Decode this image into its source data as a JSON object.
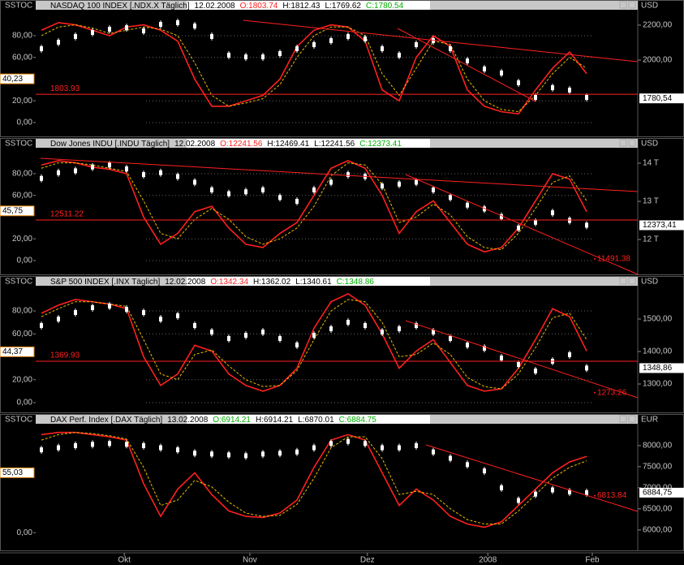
{
  "x_axis": {
    "x": [
      1,
      4,
      7,
      10,
      13,
      16,
      19,
      22,
      25,
      28,
      31,
      34,
      37,
      40,
      43,
      46,
      49,
      52,
      55,
      58,
      61,
      64,
      67,
      70,
      73,
      76,
      79,
      82,
      85,
      88,
      91,
      94,
      97
    ],
    "xlim": [
      0,
      106
    ],
    "xticks": [
      {
        "value": 15.6,
        "label": "Okt"
      },
      {
        "value": 37.7,
        "label": "Nov"
      },
      {
        "value": 58.4,
        "label": "Dez"
      },
      {
        "value": 79.6,
        "label": "2008"
      },
      {
        "value": 98,
        "label": "Feb"
      }
    ]
  },
  "chart_data": [
    {
      "type": "stochastic",
      "indicator": "SSTOC",
      "y2_unit": "USD",
      "title": "NASDAQ 100 INDEX [.NDX.X  Täglich]",
      "date": "12.02.2008",
      "quote": [
        {
          "text": "O:1803.74",
          "color": "#ff2020"
        },
        {
          "text": "H:1812.43",
          "color": "#000000"
        },
        {
          "text": "L:1769.62",
          "color": "#000000"
        },
        {
          "text": "C:1780.54",
          "color": "#00b000"
        }
      ],
      "ylim": [
        -10.5,
        103.9
      ],
      "yticks": [
        {
          "value": 0,
          "label": "0,00"
        },
        {
          "value": 20,
          "label": "20,00"
        },
        {
          "value": 60,
          "label": "60,00"
        },
        {
          "value": 80,
          "label": "80,00"
        }
      ],
      "y2lim": [
        1577,
        2288
      ],
      "y2ticks": [
        {
          "value": 2000,
          "label": "2000,00"
        },
        {
          "value": 2200,
          "label": "2200,00"
        }
      ],
      "grid": true,
      "series": [
        {
          "color": "#ff2020",
          "values": [
            85,
            92,
            90,
            85,
            80,
            88,
            90,
            85,
            75,
            40,
            15,
            15,
            20,
            25,
            40,
            70,
            85,
            90,
            88,
            75,
            30,
            20,
            60,
            80,
            70,
            30,
            15,
            10,
            8,
            30,
            50,
            65,
            45
          ]
        },
        {
          "color": "#e8c000",
          "dashed": true,
          "values": [
            80,
            88,
            90,
            87,
            82,
            85,
            88,
            86,
            80,
            55,
            25,
            15,
            18,
            22,
            35,
            60,
            80,
            88,
            88,
            80,
            45,
            25,
            50,
            75,
            72,
            40,
            20,
            12,
            10,
            25,
            45,
            60,
            50
          ]
        },
        {
          "color": "#ffffff",
          "candles": true,
          "axis": "y2",
          "values": [
            2065,
            2102,
            2135,
            2158,
            2176,
            2185,
            2167,
            2204,
            2214,
            2195,
            2135,
            2028,
            2018,
            2018,
            2037,
            2065,
            2088,
            2111,
            2135,
            2121,
            2065,
            2028,
            2088,
            2111,
            2065,
            1995,
            1949,
            1926,
            1870,
            1786,
            1842,
            1828,
            1786
          ]
        }
      ],
      "level": {
        "value": 1803.93,
        "label": "1803.93"
      },
      "left_tag": {
        "value": 40.23,
        "label": "40,23"
      },
      "right_tag": {
        "value": 1780.54,
        "label": "1780,54"
      }
    },
    {
      "type": "stochastic",
      "indicator": "SSTOC",
      "y2_unit": "USD",
      "title": "Dow Jones INDU [.INDU  Täglich]",
      "date": "12.02.2008",
      "quote": [
        {
          "text": "O:12241.56",
          "color": "#ff2020"
        },
        {
          "text": "H:12469.41",
          "color": "#000000"
        },
        {
          "text": "L:12241.56",
          "color": "#000000"
        },
        {
          "text": "C:12373.41",
          "color": "#00b000"
        }
      ],
      "ylim": [
        -10.5,
        103.9
      ],
      "yticks": [
        {
          "value": 0,
          "label": "0,00"
        },
        {
          "value": 20,
          "label": "20,00"
        },
        {
          "value": 60,
          "label": "60,00"
        },
        {
          "value": 80,
          "label": "80,00"
        }
      ],
      "y2lim": [
        11149,
        14404
      ],
      "y2ticks": [
        {
          "value": 12000,
          "label": "12 T"
        },
        {
          "value": 13000,
          "label": "13 T"
        },
        {
          "value": 14000,
          "label": "14 T"
        }
      ],
      "grid": true,
      "series": [
        {
          "color": "#ff2020",
          "values": [
            88,
            92,
            90,
            86,
            84,
            80,
            40,
            15,
            25,
            45,
            50,
            30,
            15,
            12,
            25,
            35,
            60,
            85,
            92,
            85,
            60,
            25,
            45,
            55,
            35,
            15,
            8,
            12,
            30,
            55,
            80,
            75,
            45
          ]
        },
        {
          "color": "#e8c000",
          "dashed": true,
          "values": [
            85,
            90,
            90,
            88,
            85,
            82,
            55,
            25,
            20,
            38,
            48,
            38,
            22,
            15,
            20,
            30,
            50,
            78,
            90,
            88,
            70,
            35,
            40,
            52,
            42,
            22,
            12,
            10,
            25,
            48,
            72,
            78,
            55
          ]
        },
        {
          "color": "#ffffff",
          "candles": true,
          "axis": "y2",
          "values": [
            13600,
            13750,
            13800,
            13900,
            13950,
            13850,
            13700,
            13750,
            13650,
            13500,
            13300,
            13200,
            13250,
            13300,
            13100,
            13000,
            13300,
            13500,
            13700,
            13650,
            13400,
            13450,
            13500,
            13300,
            13100,
            12900,
            12800,
            12600,
            12300,
            12450,
            12700,
            12500,
            12373
          ]
        }
      ],
      "level": {
        "value": 12511.22,
        "label": "12511.22"
      },
      "annotation": {
        "value": 11491.38,
        "label": "11491.38"
      },
      "left_tag": {
        "value": 45.75,
        "label": "45,75"
      },
      "right_tag": {
        "value": 12373.41,
        "label": "12373,41"
      }
    },
    {
      "type": "stochastic",
      "indicator": "SSTOC",
      "y2_unit": "USD",
      "title": "S&P 500 INDEX [.INX  Täglich]",
      "date": "12.02.2008",
      "quote": [
        {
          "text": "O:1342.34",
          "color": "#ff2020"
        },
        {
          "text": "H:1362.02",
          "color": "#000000"
        },
        {
          "text": "L:1340.61",
          "color": "#000000"
        },
        {
          "text": "C:1348.86",
          "color": "#00b000"
        }
      ],
      "ylim": [
        -6.4,
        102
      ],
      "yticks": [
        {
          "value": 0,
          "label": "0,00"
        },
        {
          "value": 20,
          "label": "20,00"
        },
        {
          "value": 60,
          "label": "60,00"
        },
        {
          "value": 80,
          "label": "80,00"
        }
      ],
      "y2lim": [
        1220,
        1602.5
      ],
      "y2ticks": [
        {
          "value": 1300,
          "label": "1300,00"
        },
        {
          "value": 1400,
          "label": "1400,00"
        },
        {
          "value": 1500,
          "label": "1500,00"
        }
      ],
      "grid": true,
      "series": [
        {
          "color": "#ff2020",
          "values": [
            78,
            85,
            90,
            88,
            86,
            82,
            40,
            15,
            25,
            50,
            45,
            25,
            15,
            10,
            15,
            30,
            65,
            88,
            95,
            85,
            60,
            30,
            45,
            55,
            35,
            15,
            10,
            12,
            30,
            55,
            82,
            75,
            45
          ]
        },
        {
          "color": "#e8c000",
          "dashed": true,
          "values": [
            75,
            82,
            88,
            88,
            86,
            84,
            55,
            25,
            20,
            42,
            46,
            32,
            20,
            14,
            15,
            28,
            55,
            80,
            90,
            88,
            70,
            40,
            42,
            52,
            42,
            22,
            14,
            12,
            25,
            48,
            74,
            78,
            55
          ]
        },
        {
          "color": "#ffffff",
          "candles": true,
          "axis": "y2",
          "values": [
            1480,
            1500,
            1520,
            1535,
            1540,
            1530,
            1520,
            1500,
            1510,
            1480,
            1460,
            1440,
            1450,
            1460,
            1440,
            1420,
            1450,
            1470,
            1490,
            1480,
            1460,
            1470,
            1480,
            1460,
            1440,
            1420,
            1410,
            1380,
            1360,
            1340,
            1370,
            1390,
            1349
          ]
        }
      ],
      "level": {
        "value": 1369.93,
        "label": "1369.93"
      },
      "annotation": {
        "value": 1273.26,
        "label": "1273.26"
      },
      "left_tag": {
        "value": 44.37,
        "label": "44,37"
      },
      "right_tag": {
        "value": 1348.86,
        "label": "1348,86"
      }
    },
    {
      "type": "stochastic",
      "indicator": "SSTOC",
      "y2_unit": "EUR",
      "title": "DAX Perf. Index [.DAX  Täglich]",
      "date": "13.02.2008",
      "quote": [
        {
          "text": "O:6914.21",
          "color": "#00b000"
        },
        {
          "text": "H:6914.21",
          "color": "#000000"
        },
        {
          "text": "L:6870.01",
          "color": "#000000"
        },
        {
          "text": "C:6884.75",
          "color": "#00b000"
        }
      ],
      "ylim": [
        -14,
        100
      ],
      "yticks": [
        {
          "value": 0,
          "label": "0,00"
        }
      ],
      "y2lim": [
        5574,
        8518
      ],
      "y2ticks": [
        {
          "value": 6000,
          "label": "6000,00"
        },
        {
          "value": 6500,
          "label": "6500,00"
        },
        {
          "value": 7000,
          "label": "7000,00"
        },
        {
          "value": 7500,
          "label": "7500,00"
        },
        {
          "value": 8000,
          "label": "8000,00"
        }
      ],
      "grid": false,
      "series": [
        {
          "color": "#ff2020",
          "values": [
            90,
            92,
            92,
            90,
            88,
            85,
            45,
            15,
            40,
            55,
            35,
            20,
            15,
            14,
            18,
            30,
            60,
            85,
            90,
            85,
            55,
            25,
            40,
            30,
            15,
            8,
            5,
            10,
            25,
            40,
            55,
            65,
            70
          ]
        },
        {
          "color": "#e8c000",
          "dashed": true,
          "values": [
            85,
            90,
            92,
            91,
            89,
            86,
            60,
            25,
            30,
            48,
            42,
            28,
            18,
            15,
            16,
            26,
            50,
            78,
            88,
            88,
            68,
            35,
            38,
            35,
            22,
            12,
            8,
            8,
            20,
            35,
            50,
            60,
            66
          ]
        },
        {
          "color": "#ffffff",
          "candles": true,
          "axis": "y2",
          "values": [
            7900,
            7950,
            8000,
            8030,
            8050,
            8030,
            8000,
            7950,
            7900,
            7820,
            7800,
            7780,
            7760,
            7800,
            7820,
            7850,
            7950,
            8050,
            8100,
            8050,
            7950,
            7950,
            8000,
            7850,
            7700,
            7550,
            7400,
            7000,
            6700,
            6850,
            6950,
            6900,
            6885
          ]
        }
      ],
      "annotation": {
        "value": 6813.84,
        "label": "6813.84"
      },
      "left_tag": {
        "value": 55.03,
        "label": "55,03"
      },
      "right_tag": {
        "value": 6884.75,
        "label": "6884,75"
      }
    }
  ]
}
